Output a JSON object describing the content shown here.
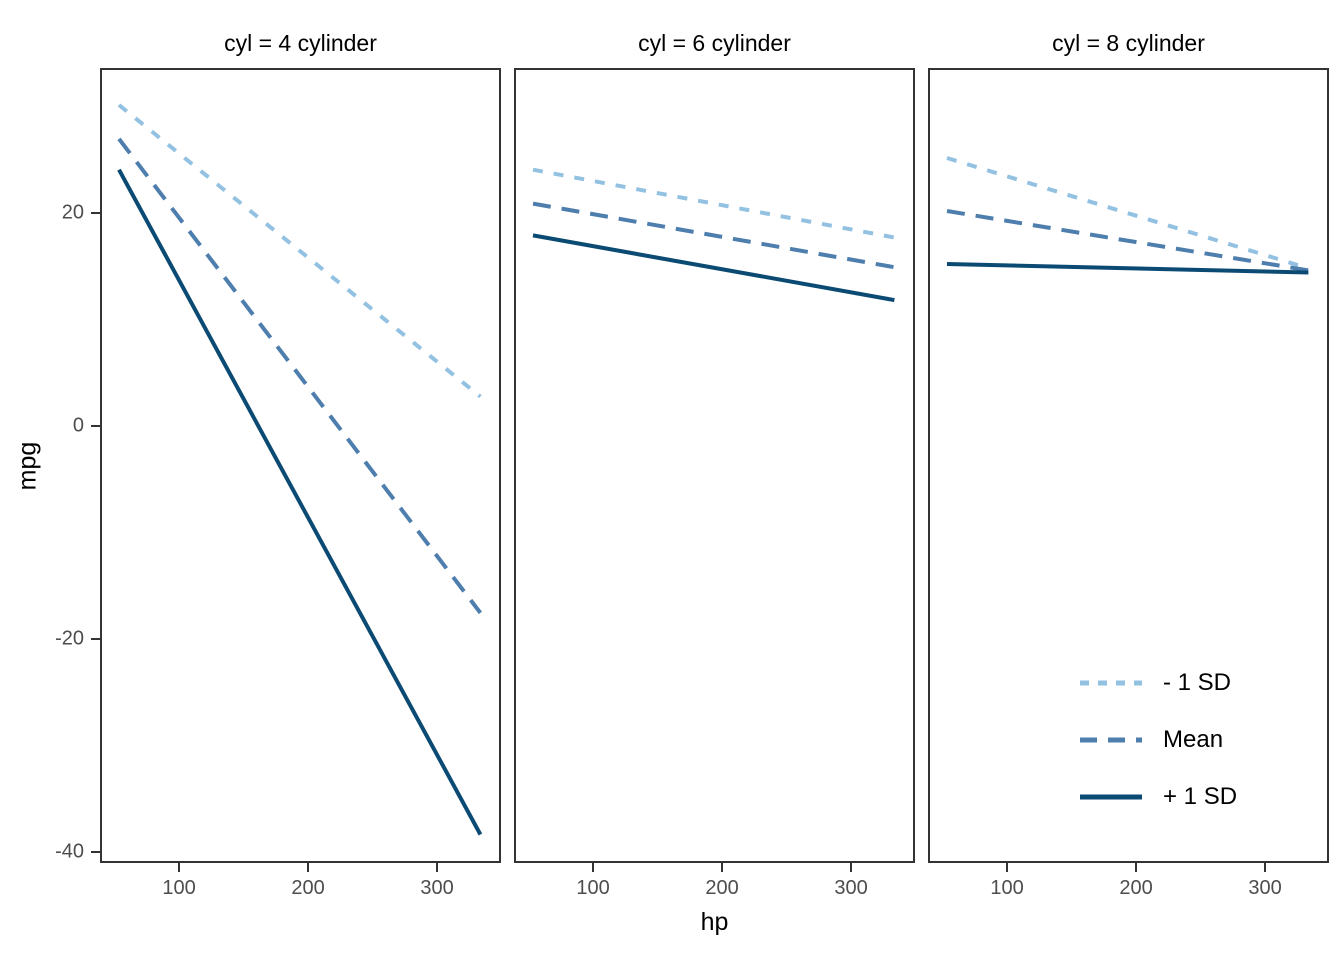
{
  "chart_data": {
    "type": "line",
    "title": "",
    "xlabel": "hp",
    "ylabel": "mpg",
    "x_ticks": [
      100,
      200,
      300
    ],
    "y_ticks": [
      20,
      0,
      -20,
      -40
    ],
    "xlim": [
      38.7,
      349.6
    ],
    "ylim": [
      -41.0,
      33.6
    ],
    "grid": "off",
    "x": [
      52,
      335
    ],
    "facets": [
      {
        "title": "cyl = 4 cylinder",
        "series": [
          {
            "name": "- 1 SD",
            "y": [
              30.3,
              2.8
            ]
          },
          {
            "name": "Mean",
            "y": [
              27.1,
              -17.6
            ]
          },
          {
            "name": "+ 1 SD",
            "y": [
              24.2,
              -38.5
            ]
          }
        ]
      },
      {
        "title": "cyl = 6 cylinder",
        "series": [
          {
            "name": "- 1 SD",
            "y": [
              24.2,
              17.8
            ]
          },
          {
            "name": "Mean",
            "y": [
              21.0,
              15.0
            ]
          },
          {
            "name": "+ 1 SD",
            "y": [
              18.0,
              11.9
            ]
          }
        ]
      },
      {
        "title": "cyl = 8 cylinder",
        "series": [
          {
            "name": "- 1 SD",
            "y": [
              25.3,
              14.9
            ]
          },
          {
            "name": "Mean",
            "y": [
              20.3,
              14.7
            ]
          },
          {
            "name": "+ 1 SD",
            "y": [
              15.3,
              14.5
            ]
          }
        ]
      }
    ],
    "legend": {
      "position": "inside bottom-right of third panel",
      "entries": [
        {
          "label": "- 1 SD",
          "style": "dotted",
          "color": "#93C1E1"
        },
        {
          "label": "Mean",
          "style": "dashed",
          "color": "#4E7EAD"
        },
        {
          "label": "+ 1 SD",
          "style": "solid",
          "color": "#0B4A73"
        }
      ]
    },
    "colors": {
      "panel_border": "#333333",
      "tick_label": "#4d4d4d",
      "text": "#000000",
      "background": "#ffffff"
    }
  }
}
